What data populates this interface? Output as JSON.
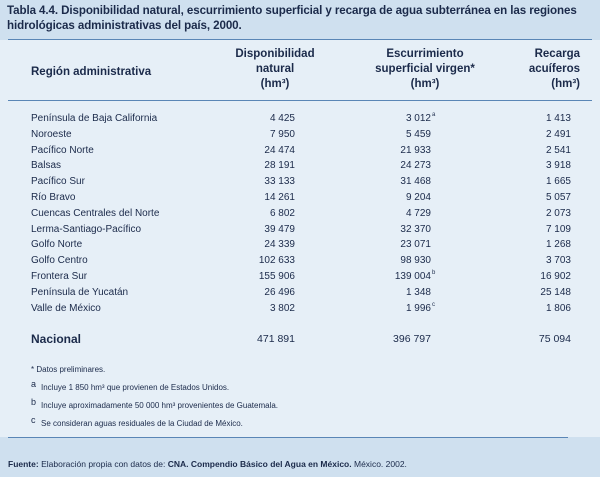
{
  "title": "Tabla 4.4. Disponibilidad natural, escurrimiento superficial y recarga de agua subterránea en las regiones hidrológicas administrativas del país, 2000.",
  "headers": {
    "region": "Región administrativa",
    "col1": [
      "Disponibilidad",
      "natural",
      "(hm³)"
    ],
    "col2": [
      "Escurrimiento",
      "superficial virgen*",
      "(hm³)"
    ],
    "col3": [
      "Recarga",
      "acuíferos",
      "(hm³)"
    ]
  },
  "rows": [
    {
      "name": "Península de Baja California",
      "disponibilidad": "4 425",
      "escurrimiento": "3 012",
      "esc_note": "a",
      "recarga": "1 413"
    },
    {
      "name": "Noroeste",
      "disponibilidad": "7 950",
      "escurrimiento": "5 459",
      "esc_note": "",
      "recarga": "2 491"
    },
    {
      "name": "Pacífico Norte",
      "disponibilidad": "24 474",
      "escurrimiento": "21 933",
      "esc_note": "",
      "recarga": "2 541"
    },
    {
      "name": "Balsas",
      "disponibilidad": "28 191",
      "escurrimiento": "24 273",
      "esc_note": "",
      "recarga": "3 918"
    },
    {
      "name": "Pacífico Sur",
      "disponibilidad": "33 133",
      "escurrimiento": "31 468",
      "esc_note": "",
      "recarga": "1 665"
    },
    {
      "name": "Río Bravo",
      "disponibilidad": "14 261",
      "escurrimiento": "9 204",
      "esc_note": "",
      "recarga": "5 057"
    },
    {
      "name": "Cuencas Centrales del Norte",
      "disponibilidad": "6 802",
      "escurrimiento": "4 729",
      "esc_note": "",
      "recarga": "2 073"
    },
    {
      "name": "Lerma-Santiago-Pacífico",
      "disponibilidad": "39 479",
      "escurrimiento": "32 370",
      "esc_note": "",
      "recarga": "7 109"
    },
    {
      "name": "Golfo Norte",
      "disponibilidad": "24 339",
      "escurrimiento": "23 071",
      "esc_note": "",
      "recarga": "1 268"
    },
    {
      "name": "Golfo Centro",
      "disponibilidad": "102 633",
      "escurrimiento": "98 930",
      "esc_note": "",
      "recarga": "3 703"
    },
    {
      "name": "Frontera Sur",
      "disponibilidad": "155 906",
      "escurrimiento": "139 004",
      "esc_note": "b",
      "recarga": "16 902"
    },
    {
      "name": "Península de Yucatán",
      "disponibilidad": "26 496",
      "escurrimiento": "1 348",
      "esc_note": "",
      "recarga": "25 148"
    },
    {
      "name": "Valle de México",
      "disponibilidad": "3 802",
      "escurrimiento": "1 996",
      "esc_note": "c",
      "recarga": "1 806"
    }
  ],
  "total": {
    "name": "Nacional",
    "disponibilidad": "471 891",
    "escurrimiento": "396 797",
    "recarga": "75 094"
  },
  "notes": {
    "star": "* Datos preliminares.",
    "a": {
      "letter": "a",
      "text": "Incluye 1 850 hm³ que provienen de Estados Unidos."
    },
    "b": {
      "letter": "b",
      "text": "Incluye aproximadamente 50 000 hm³ provenientes de Guatemala."
    },
    "c": {
      "letter": "c",
      "text": "Se consideran aguas residuales de la Ciudad de México."
    }
  },
  "footer": {
    "label": "Fuente:",
    "text1": "Elaboración propia con datos de:",
    "bold": "CNA. Compendio Básico del Agua en México.",
    "text2": "México. 2002."
  }
}
